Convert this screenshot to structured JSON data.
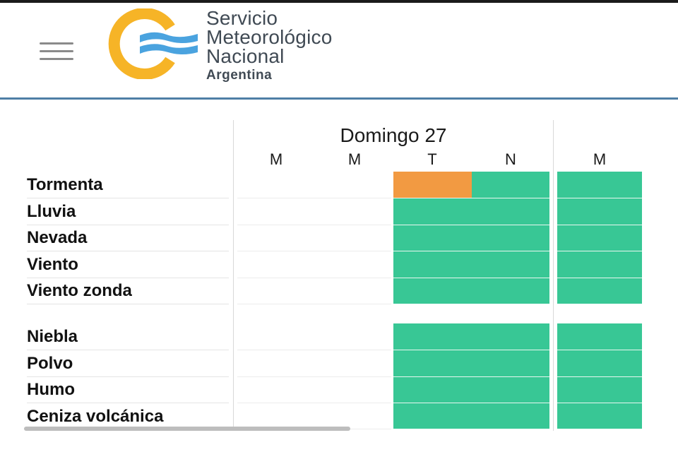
{
  "header": {
    "menu_icon": "hamburger-menu-icon",
    "logo_icon": "smn-logo-icon",
    "logo_lines": [
      "Servicio",
      "Meteorológico",
      "Nacional",
      "Argentina"
    ]
  },
  "table": {
    "day_title": "Domingo 27",
    "periods": [
      "M",
      "M",
      "T",
      "N",
      "M"
    ],
    "group1": [
      "Tormenta",
      "Lluvia",
      "Nevada",
      "Viento",
      "Viento zonda"
    ],
    "group2": [
      "Niebla",
      "Polvo",
      "Humo",
      "Ceniza volcánica"
    ]
  },
  "colors": {
    "green": "#38c795",
    "orange": "#f29a42",
    "header_line": "#4f7fa6",
    "logo_yellow": "#f6b427",
    "logo_blue": "#4aa3df"
  },
  "alert_cells": [
    {
      "row": "Tormenta",
      "period_index": 2,
      "level": "orange"
    },
    {
      "row": "Tormenta",
      "period_index": 3,
      "level": "green"
    },
    {
      "row": "Tormenta",
      "period_index": 4,
      "level": "green"
    }
  ]
}
